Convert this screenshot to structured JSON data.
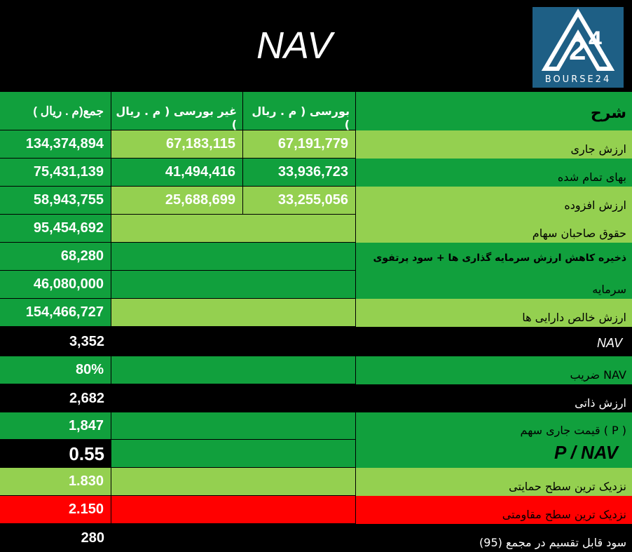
{
  "title": "NAV",
  "logo": {
    "text": "BOURSE24",
    "icon": "bourse24-logo-icon"
  },
  "colors": {
    "dark_green": "#11a03d",
    "light_green": "#94d050",
    "green": "#00af50",
    "red": "#ff0000",
    "black": "#000000"
  },
  "header": {
    "desc": "شرح",
    "bourse": "بورسی ( م . ریال )",
    "non_bourse": "غیر بورسی ( م . ریال )",
    "total": "( م . ریال)جمع"
  },
  "rows": [
    {
      "label": "ارزش جاری",
      "bourse": "67,191,779",
      "non_bourse": "67,183,115",
      "total": "134,374,894"
    },
    {
      "label": "بهای تمام شده",
      "bourse": "33,936,723",
      "non_bourse": "41,494,416",
      "total": "75,431,139"
    },
    {
      "label": "ارزش افزوده",
      "bourse": "33,255,056",
      "non_bourse": "25,688,699",
      "total": "58,943,755"
    },
    {
      "label": "حقوق صاحبان سهام",
      "total": "95,454,692"
    },
    {
      "label": "ذخیره کاهش ارزش سرمایه گذاری ها + سود پرتفوی",
      "total": "68,280"
    },
    {
      "label": "سرمایه",
      "total": "46,080,000"
    },
    {
      "label": "ارزش خالص دارایی ها",
      "total": "154,466,727"
    },
    {
      "label": "NAV",
      "total": "3,352"
    },
    {
      "label": "NAV ضریب",
      "total": "80%"
    },
    {
      "label": "ارزش ذاتی",
      "total": "2,682"
    },
    {
      "label": "( P ) قیمت جاری سهم",
      "total": "1,847"
    },
    {
      "label": "P / NAV",
      "total": "0.55"
    },
    {
      "label": "نزدیک ترین سطح حمایتی",
      "total": "1.830"
    },
    {
      "label": "نزدیک ترین سطح مقاومتی",
      "total": "2.150"
    },
    {
      "label": "سود قابل تقسیم در مجمع (95)",
      "total": "280"
    }
  ]
}
